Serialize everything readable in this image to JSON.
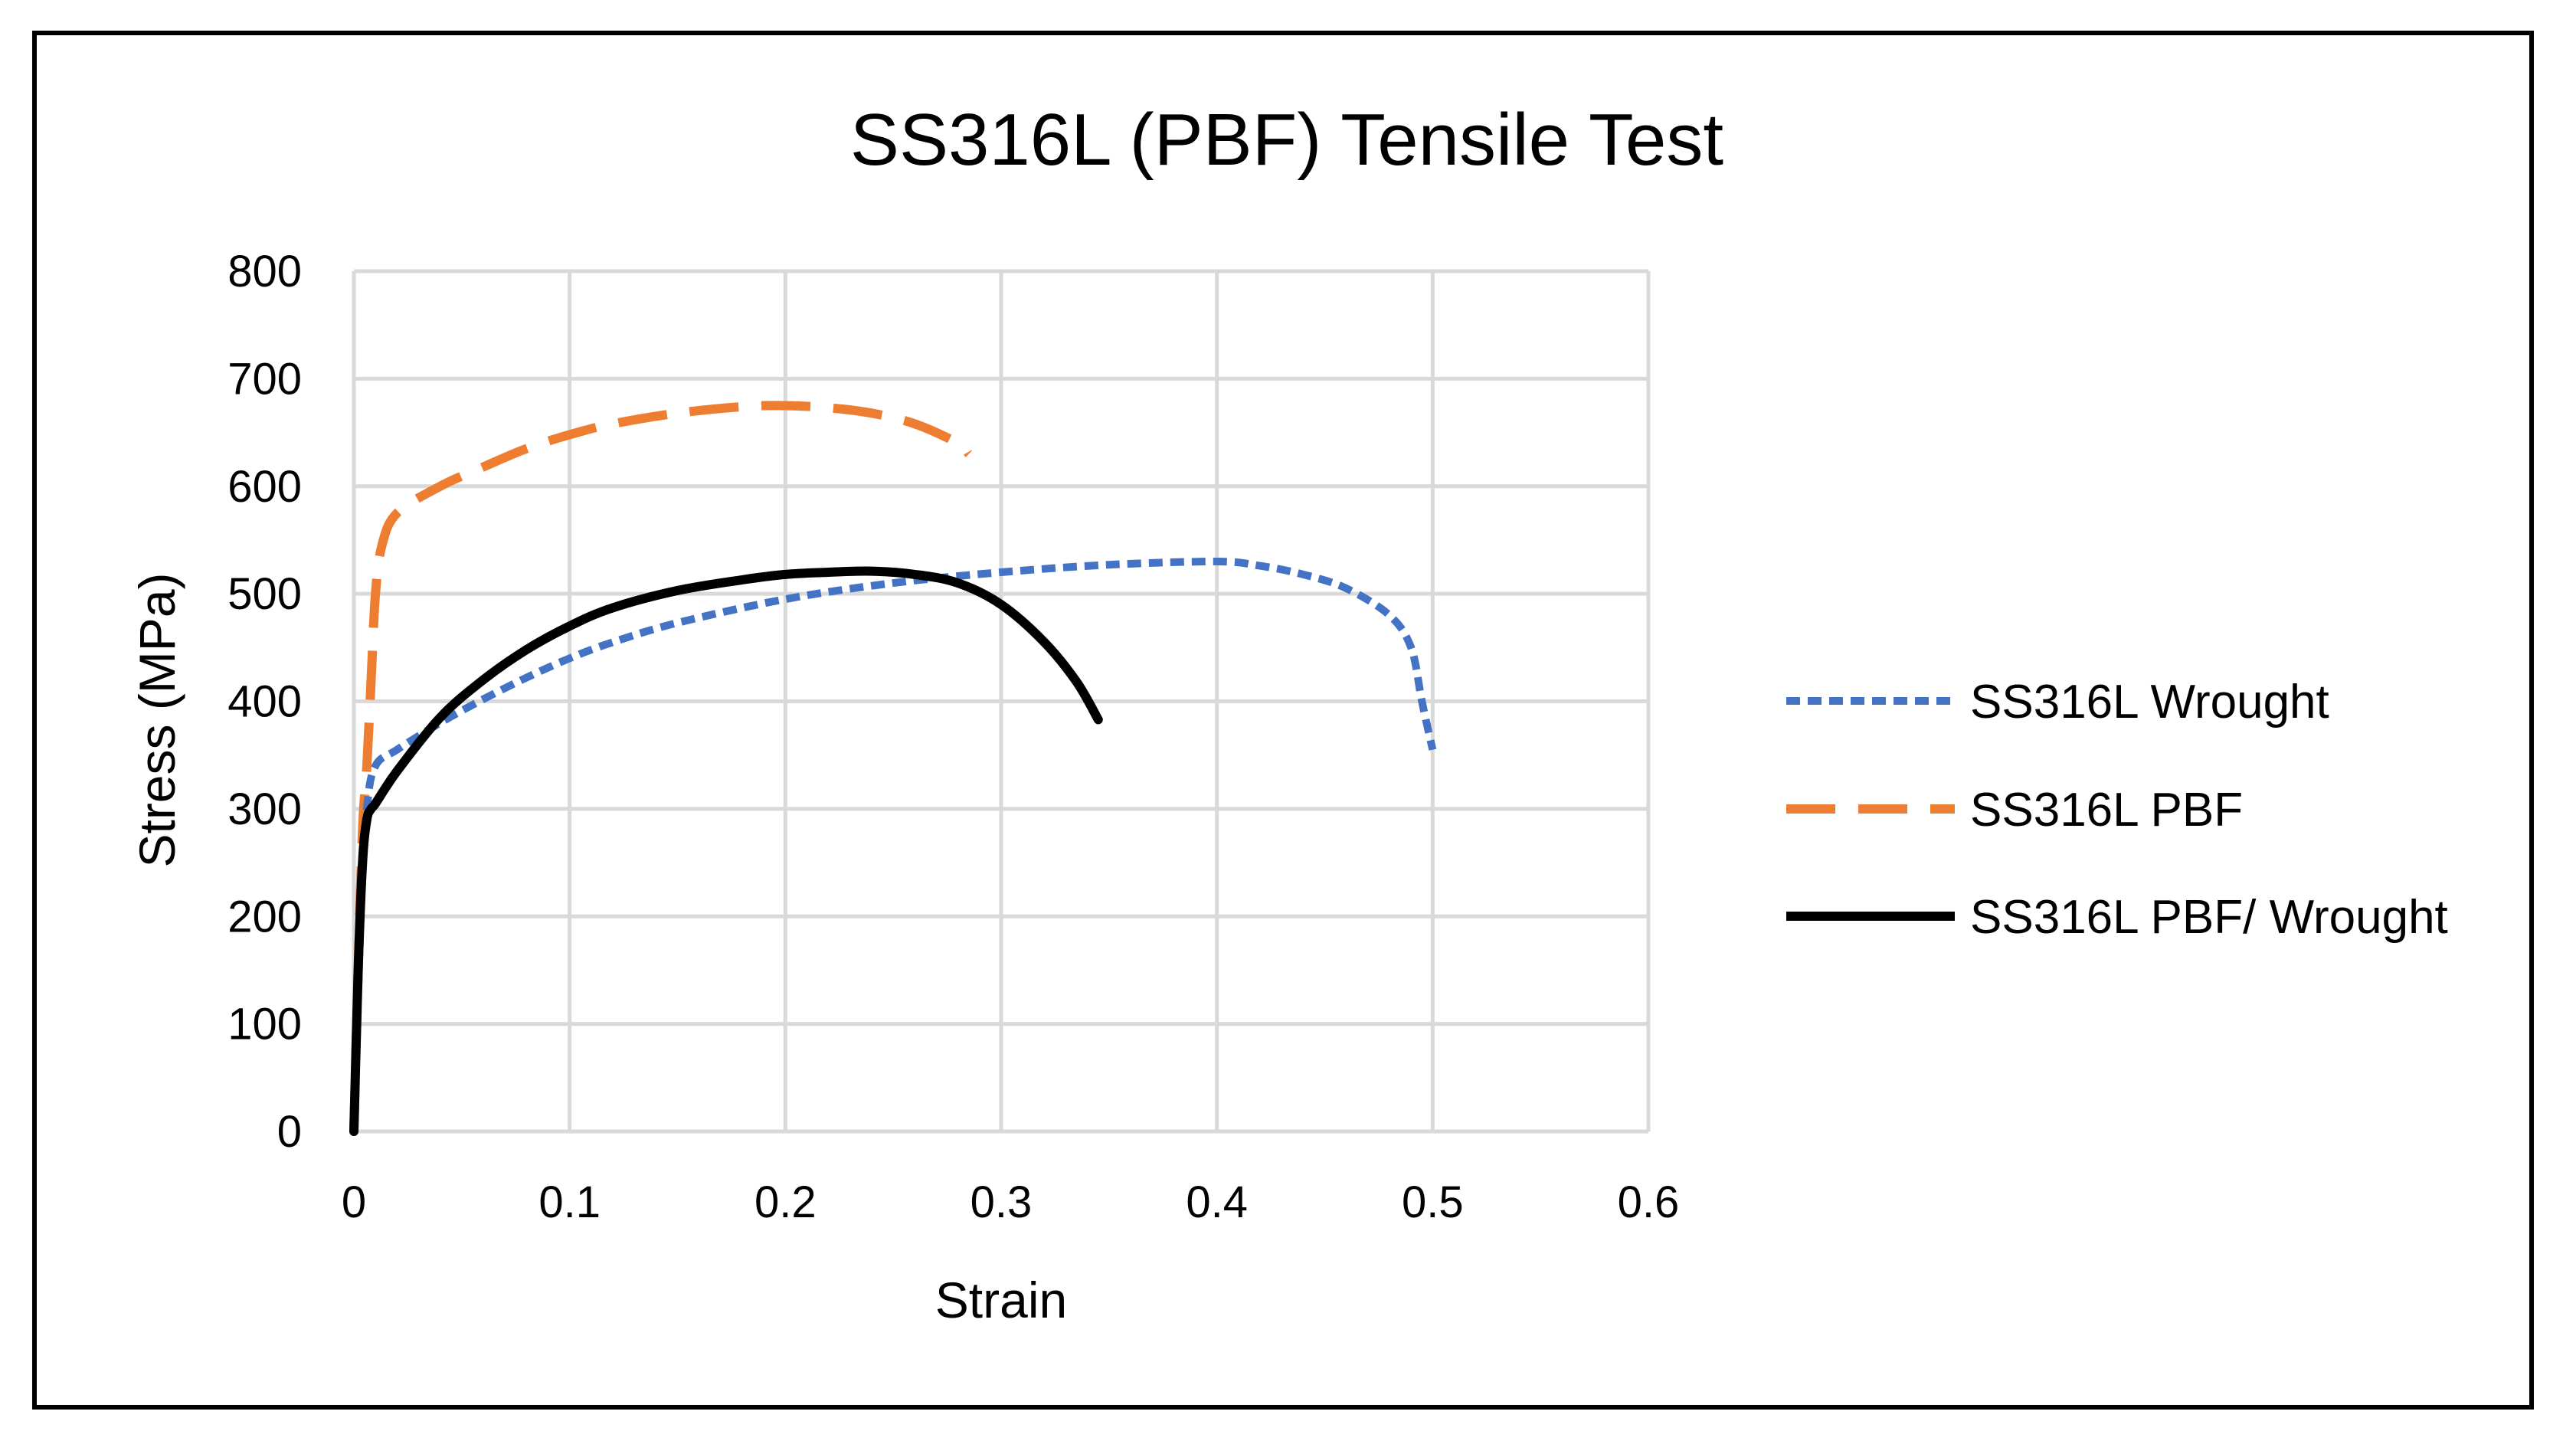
{
  "chart_data": {
    "type": "line",
    "title": "SS316L (PBF) Tensile Test",
    "xlabel": "Strain",
    "ylabel": "Stress (MPa)",
    "xlim": [
      0,
      0.6
    ],
    "ylim": [
      0,
      800
    ],
    "xticks": [
      "0",
      "0.1",
      "0.2",
      "0.3",
      "0.4",
      "0.5",
      "0.6"
    ],
    "yticks": [
      "0",
      "100",
      "200",
      "300",
      "400",
      "500",
      "600",
      "700",
      "800"
    ],
    "grid": true,
    "legend_position": "right",
    "series": [
      {
        "name": "SS316L Wrought",
        "color": "#4472c4",
        "style": "dotted",
        "x": [
          0,
          0.003,
          0.006,
          0.01,
          0.02,
          0.04,
          0.06,
          0.08,
          0.1,
          0.12,
          0.15,
          0.2,
          0.25,
          0.3,
          0.35,
          0.4,
          0.42,
          0.44,
          0.46,
          0.48,
          0.49,
          0.495,
          0.5
        ],
        "y": [
          0,
          200,
          300,
          340,
          355,
          380,
          402,
          422,
          440,
          455,
          473,
          495,
          510,
          520,
          527,
          530,
          526,
          518,
          505,
          480,
          450,
          400,
          355
        ]
      },
      {
        "name": "SS316L PBF",
        "color": "#ed7d31",
        "style": "dashed",
        "x": [
          0,
          0.002,
          0.004,
          0.006,
          0.008,
          0.01,
          0.013,
          0.02,
          0.04,
          0.06,
          0.08,
          0.1,
          0.12,
          0.15,
          0.18,
          0.2,
          0.22,
          0.24,
          0.26,
          0.28,
          0.285
        ],
        "y": [
          0,
          150,
          280,
          340,
          420,
          500,
          545,
          575,
          600,
          618,
          635,
          648,
          658,
          668,
          674,
          675,
          673,
          668,
          658,
          640,
          630
        ]
      },
      {
        "name": "SS316L PBF/ Wrought",
        "color": "#000000",
        "style": "solid",
        "x": [
          0,
          0.002,
          0.004,
          0.006,
          0.008,
          0.01,
          0.02,
          0.04,
          0.06,
          0.08,
          0.1,
          0.12,
          0.15,
          0.18,
          0.2,
          0.22,
          0.24,
          0.26,
          0.28,
          0.3,
          0.32,
          0.335,
          0.345
        ],
        "y": [
          0,
          150,
          250,
          290,
          300,
          305,
          335,
          385,
          420,
          448,
          470,
          487,
          503,
          513,
          518,
          520,
          521,
          518,
          510,
          490,
          455,
          418,
          383
        ]
      }
    ]
  }
}
